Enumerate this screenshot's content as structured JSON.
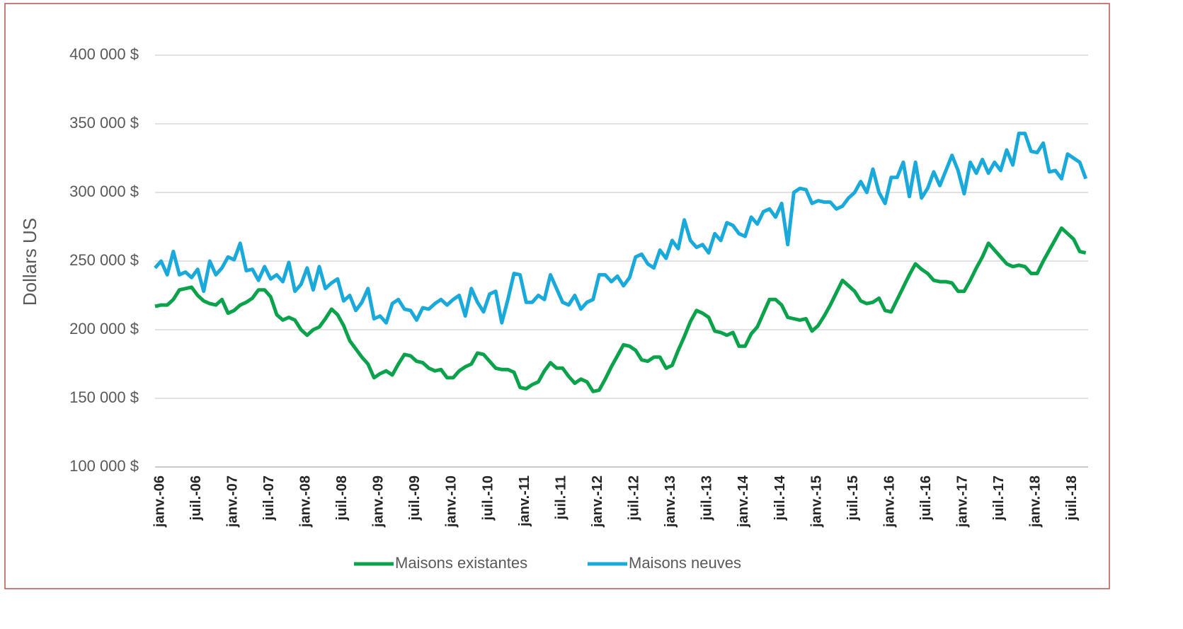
{
  "chart_data": {
    "type": "line",
    "ylabel": "Dollars US",
    "categories": [
      "janv.-06",
      null,
      null,
      null,
      null,
      null,
      "juil.-06",
      null,
      null,
      null,
      null,
      null,
      "janv.-07",
      null,
      null,
      null,
      null,
      null,
      "juil.-07",
      null,
      null,
      null,
      null,
      null,
      "janv.-08",
      null,
      null,
      null,
      null,
      null,
      "juil.-08",
      null,
      null,
      null,
      null,
      null,
      "janv.-09",
      null,
      null,
      null,
      null,
      null,
      "juil.-09",
      null,
      null,
      null,
      null,
      null,
      "janv.-10",
      null,
      null,
      null,
      null,
      null,
      "juil.-10",
      null,
      null,
      null,
      null,
      null,
      "janv.-11",
      null,
      null,
      null,
      null,
      null,
      "juil.-11",
      null,
      null,
      null,
      null,
      null,
      "janv.-12",
      null,
      null,
      null,
      null,
      null,
      "juil.-12",
      null,
      null,
      null,
      null,
      null,
      "janv.-13",
      null,
      null,
      null,
      null,
      null,
      "juil.-13",
      null,
      null,
      null,
      null,
      null,
      "janv.-14",
      null,
      null,
      null,
      null,
      null,
      "juil.-14",
      null,
      null,
      null,
      null,
      null,
      "janv.-15",
      null,
      null,
      null,
      null,
      null,
      "juil.-15",
      null,
      null,
      null,
      null,
      null,
      "janv.-16",
      null,
      null,
      null,
      null,
      null,
      "juil.-16",
      null,
      null,
      null,
      null,
      null,
      "janv.-17",
      null,
      null,
      null,
      null,
      null,
      "juil.-17",
      null,
      null,
      null,
      null,
      null,
      "janv.-18",
      null,
      null,
      null,
      null,
      null,
      "juil.-18",
      null,
      null,
      null
    ],
    "series": [
      {
        "name": "Maisons existantes",
        "color": "#0aa24a",
        "values": [
          217000,
          218000,
          218000,
          222000,
          229000,
          230000,
          231000,
          225000,
          221000,
          219000,
          218000,
          222000,
          212000,
          214000,
          218000,
          220000,
          223000,
          229000,
          229000,
          224000,
          211000,
          207000,
          209000,
          207000,
          200000,
          196000,
          200000,
          202000,
          208000,
          215000,
          211000,
          203000,
          192000,
          186000,
          180000,
          175000,
          165000,
          168000,
          170000,
          167000,
          175000,
          182000,
          181000,
          177000,
          176000,
          172000,
          170000,
          171000,
          165000,
          165000,
          170000,
          173000,
          175000,
          183000,
          182000,
          177000,
          172000,
          171000,
          171000,
          169000,
          158000,
          157000,
          160000,
          162000,
          170000,
          176000,
          172000,
          172000,
          166000,
          161000,
          164000,
          162000,
          155000,
          156000,
          164000,
          173000,
          181000,
          189000,
          188000,
          185000,
          178000,
          177000,
          180000,
          180000,
          172000,
          174000,
          185000,
          195000,
          206000,
          214000,
          212000,
          209000,
          199000,
          198000,
          196000,
          198000,
          188000,
          188000,
          197000,
          202000,
          212000,
          222000,
          222000,
          218000,
          209000,
          208000,
          207000,
          208000,
          199000,
          203000,
          210000,
          218000,
          227000,
          236000,
          232000,
          228000,
          221000,
          219000,
          220000,
          223000,
          214000,
          213000,
          222000,
          231000,
          240000,
          248000,
          244000,
          241000,
          236000,
          235000,
          235000,
          234000,
          228000,
          228000,
          236000,
          245000,
          253000,
          263000,
          258000,
          253000,
          248000,
          246000,
          247000,
          246000,
          241000,
          241000,
          250000,
          258000,
          266000,
          274000,
          270000,
          266000,
          257000,
          256000
        ]
      },
      {
        "name": "Maisons neuves",
        "color": "#1aa9db",
        "values": [
          245000,
          250000,
          240000,
          257000,
          240000,
          242000,
          238000,
          244000,
          228000,
          250000,
          240000,
          245000,
          253000,
          251000,
          263000,
          243000,
          244000,
          236000,
          246000,
          237000,
          240000,
          235000,
          249000,
          228000,
          233000,
          245000,
          229000,
          246000,
          230000,
          234000,
          237000,
          221000,
          225000,
          214000,
          220000,
          230000,
          208000,
          210000,
          205000,
          219000,
          222000,
          215000,
          214000,
          207000,
          216000,
          215000,
          219000,
          222000,
          218000,
          222000,
          225000,
          210000,
          230000,
          220000,
          213000,
          226000,
          228000,
          205000,
          222000,
          241000,
          240000,
          220000,
          220000,
          225000,
          222000,
          240000,
          230000,
          220000,
          218000,
          225000,
          215000,
          220000,
          222000,
          240000,
          240000,
          235000,
          239000,
          232000,
          238000,
          253000,
          255000,
          248000,
          245000,
          258000,
          252000,
          265000,
          259000,
          280000,
          265000,
          260000,
          262000,
          256000,
          270000,
          265000,
          278000,
          276000,
          270000,
          268000,
          282000,
          277000,
          286000,
          288000,
          282000,
          292000,
          262000,
          300000,
          303000,
          302000,
          292000,
          294000,
          293000,
          293000,
          288000,
          290000,
          296000,
          300000,
          308000,
          300000,
          317000,
          300000,
          292000,
          311000,
          311000,
          322000,
          297000,
          322000,
          296000,
          303000,
          315000,
          305000,
          316000,
          327000,
          316000,
          299000,
          322000,
          314000,
          324000,
          314000,
          322000,
          316000,
          331000,
          320000,
          343000,
          343000,
          330000,
          329000,
          336000,
          315000,
          316000,
          310000,
          328000,
          325000,
          322000,
          310000
        ]
      }
    ],
    "ylim": [
      100000,
      400000
    ],
    "yticks": [
      {
        "value": 100000,
        "label": "100 000 $"
      },
      {
        "value": 150000,
        "label": "150 000 $"
      },
      {
        "value": 200000,
        "label": "200 000 $"
      },
      {
        "value": 250000,
        "label": "250 000 $"
      },
      {
        "value": 300000,
        "label": "300 000 $"
      },
      {
        "value": 350000,
        "label": "350 000 $"
      },
      {
        "value": 400000,
        "label": "400 000 $"
      }
    ],
    "grid": true,
    "legend": "bottom"
  }
}
